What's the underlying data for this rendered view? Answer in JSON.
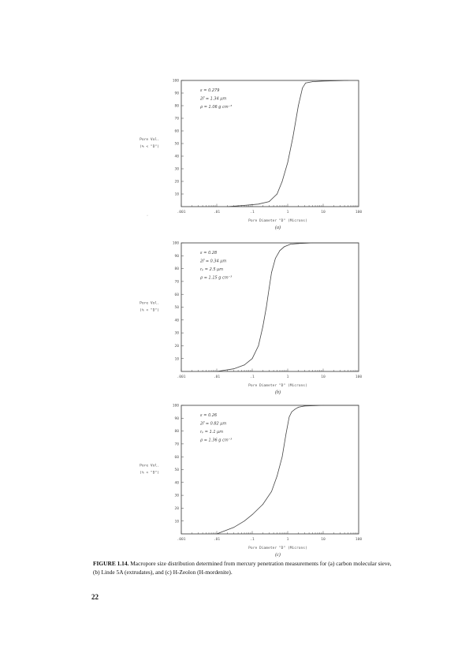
{
  "chart_data": [
    {
      "type": "line",
      "panel_label": "(a)",
      "xlabel": "Pore Diameter \"D\" (Microns)",
      "ylabel_line1": "Pore Vol.",
      "ylabel_line2": "(% < \"D\")",
      "x_scale": "log",
      "xlim": [
        0.001,
        100
      ],
      "ylim": [
        0,
        100
      ],
      "x_ticks": [
        0.001,
        0.01,
        0.1,
        1,
        10,
        100
      ],
      "x_tick_labels": [
        ".001",
        ".01",
        ".1",
        "1",
        "10",
        "100"
      ],
      "y_ticks": [
        10,
        20,
        30,
        40,
        50,
        60,
        70,
        80,
        90,
        100
      ],
      "y_tick_labels": [
        "10",
        "20",
        "30",
        "40",
        "50",
        "60",
        "70",
        "80",
        "90",
        "100"
      ],
      "annotations": [
        "ε = 0.279",
        "2r̄ = 1.34 μm",
        "ρ = 1.06 g cm⁻³"
      ],
      "grid": false,
      "series": [
        {
          "x": [
            0.02,
            0.06,
            0.15,
            0.3,
            0.5,
            0.7,
            1.0,
            1.4,
            2.0,
            2.6,
            3.2,
            5.0,
            10.0,
            50.0
          ],
          "y": [
            0,
            1,
            2,
            4,
            10,
            20,
            35,
            55,
            80,
            94,
            98,
            99,
            99.5,
            100
          ]
        }
      ]
    },
    {
      "type": "line",
      "panel_label": "(b)",
      "xlabel": "Pore Diameter \"D\" (Microns)",
      "ylabel_line1": "Pore Vol.",
      "ylabel_line2": "(% < \"D\")",
      "x_scale": "log",
      "xlim": [
        0.001,
        100
      ],
      "ylim": [
        0,
        100
      ],
      "x_ticks": [
        0.001,
        0.01,
        0.1,
        1,
        10,
        100
      ],
      "x_tick_labels": [
        ".001",
        ".01",
        ".1",
        "1",
        "10",
        "100"
      ],
      "y_ticks": [
        10,
        20,
        30,
        40,
        50,
        60,
        70,
        80,
        90,
        100
      ],
      "y_tick_labels": [
        "10",
        "20",
        "30",
        "40",
        "50",
        "60",
        "70",
        "80",
        "90",
        "100"
      ],
      "annotations": [
        "ε = 0.28",
        "2r̄ = 0.34 μm",
        "rₚ = 2.5 μm",
        "ρ = 1.15 g cm⁻³"
      ],
      "grid": false,
      "series": [
        {
          "x": [
            0.01,
            0.03,
            0.06,
            0.1,
            0.15,
            0.2,
            0.25,
            0.3,
            0.35,
            0.45,
            0.6,
            0.8,
            1.2,
            2.0,
            5.0,
            100.0
          ],
          "y": [
            0,
            2,
            5,
            10,
            20,
            35,
            50,
            65,
            77,
            88,
            94,
            97,
            99,
            99.5,
            100,
            100
          ]
        }
      ]
    },
    {
      "type": "line",
      "panel_label": "(c)",
      "xlabel": "Pore Diameter \"D\" (Microns)",
      "ylabel_line1": "Pore Vol.",
      "ylabel_line2": "(% < \"D\")",
      "x_scale": "log",
      "xlim": [
        0.001,
        100
      ],
      "ylim": [
        0,
        100
      ],
      "x_ticks": [
        0.001,
        0.01,
        0.1,
        1,
        10,
        100
      ],
      "x_tick_labels": [
        ".001",
        ".01",
        ".1",
        "1",
        "10",
        "100"
      ],
      "y_ticks": [
        10,
        20,
        30,
        40,
        50,
        60,
        70,
        80,
        90,
        100
      ],
      "y_tick_labels": [
        "10",
        "20",
        "30",
        "40",
        "50",
        "60",
        "70",
        "80",
        "90",
        "100"
      ],
      "annotations": [
        "ε = 0.26",
        "2r̄ = 0.82 μm",
        "rₚ = 1.1 μm",
        "ρ = 1.36 g cm⁻³"
      ],
      "grid": false,
      "series": [
        {
          "x": [
            0.01,
            0.03,
            0.06,
            0.1,
            0.2,
            0.35,
            0.5,
            0.7,
            0.9,
            1.1,
            1.3,
            1.6,
            2.0,
            3.0,
            10.0,
            100.0
          ],
          "y": [
            0,
            5,
            10,
            15,
            23,
            33,
            45,
            60,
            78,
            91,
            95,
            97,
            98.5,
            99.5,
            100,
            100
          ]
        }
      ]
    }
  ],
  "caption": {
    "label": "FIGURE 1.14.",
    "text": "Macropore size distribution determined from mercury penetration measurements for (a) carbon molecular sieve, (b) Linde 5A (extrudates), and (c) H-Zeolon (H-mordenite)."
  },
  "page_number": "22"
}
